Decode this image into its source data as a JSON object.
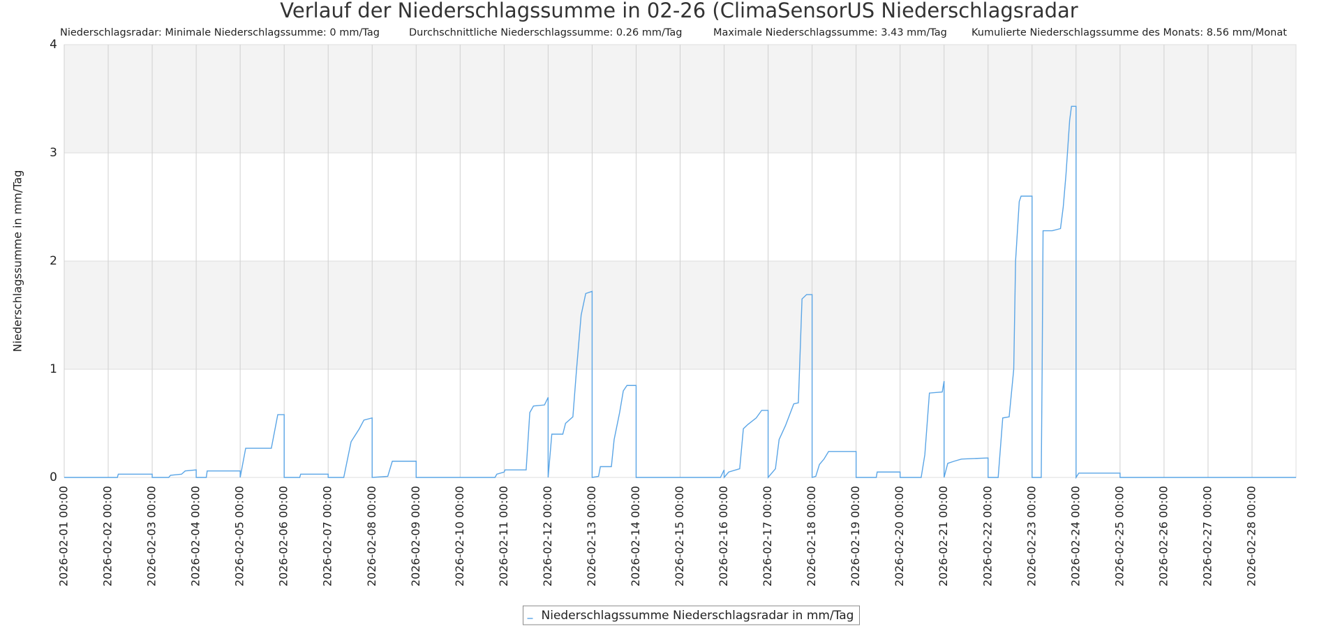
{
  "chart_data": {
    "type": "line",
    "title": "Verlauf der Niederschlagssumme in 02-26 (ClimaSensorUS Niederschlagsradar",
    "subtitles": [
      "Niederschlagsradar: Minimale Niederschlagssumme: 0 mm/Tag",
      "Durchschnittliche Niederschlagssumme: 0.26 mm/Tag",
      "Maximale Niederschlagssumme: 3.43 mm/Tag",
      "Kumulierte Niederschlagssumme des Monats: 8.56 mm/Monat"
    ],
    "y_label": "Niederschlagssumme in mm/Tag",
    "x": [
      "2026-02-01 00:00",
      "2026-02-02 05:00",
      "2026-02-02 05:30",
      "2026-02-03 00:00",
      "2026-02-03 00:00",
      "2026-02-03 09:00",
      "2026-02-03 10:00",
      "2026-02-03 16:00",
      "2026-02-03 18:00",
      "2026-02-04 00:00",
      "2026-02-04 00:00",
      "2026-02-04 05:30",
      "2026-02-04 06:00",
      "2026-02-05 00:00",
      "2026-02-05 00:00",
      "2026-02-05 03:00",
      "2026-02-05 17:00",
      "2026-02-05 20:30",
      "2026-02-06 00:00",
      "2026-02-06 00:00",
      "2026-02-06 08:30",
      "2026-02-06 09:00",
      "2026-02-07 00:00",
      "2026-02-07 00:00",
      "2026-02-07 08:30",
      "2026-02-07 12:30",
      "2026-02-07 17:00",
      "2026-02-07 19:30",
      "2026-02-08 00:00",
      "2026-02-08 00:00",
      "2026-02-08 08:30",
      "2026-02-08 11:00",
      "2026-02-09 00:00",
      "2026-02-09 00:00",
      "2026-02-10 19:00",
      "2026-02-10 20:00",
      "2026-02-11 00:00",
      "2026-02-11 00:30",
      "2026-02-11 12:00",
      "2026-02-11 14:00",
      "2026-02-11 16:00",
      "2026-02-11 22:00",
      "2026-02-12 00:00",
      "2026-02-12 00:00",
      "2026-02-12 02:00",
      "2026-02-12 08:00",
      "2026-02-12 09:30",
      "2026-02-12 13:30",
      "2026-02-12 15:30",
      "2026-02-12 18:00",
      "2026-02-12 20:30",
      "2026-02-13 00:00",
      "2026-02-13 00:00",
      "2026-02-13 03:30",
      "2026-02-13 04:30",
      "2026-02-13 10:30",
      "2026-02-13 12:00",
      "2026-02-13 15:00",
      "2026-02-13 17:00",
      "2026-02-13 19:00",
      "2026-02-14 00:00",
      "2026-02-14 00:00",
      "2026-02-15 22:00",
      "2026-02-16 00:00",
      "2026-02-16 00:00",
      "2026-02-16 02:30",
      "2026-02-16 08:30",
      "2026-02-16 10:30",
      "2026-02-16 13:00",
      "2026-02-16 17:30",
      "2026-02-16 20:30",
      "2026-02-17 00:00",
      "2026-02-17 00:00",
      "2026-02-17 04:00",
      "2026-02-17 06:00",
      "2026-02-17 09:30",
      "2026-02-17 14:00",
      "2026-02-17 16:30",
      "2026-02-17 18:30",
      "2026-02-17 21:00",
      "2026-02-18 00:00",
      "2026-02-18 00:00",
      "2026-02-18 02:00",
      "2026-02-18 04:00",
      "2026-02-18 06:30",
      "2026-02-18 09:00",
      "2026-02-19 00:00",
      "2026-02-19 00:00",
      "2026-02-19 11:00",
      "2026-02-19 11:30",
      "2026-02-20 00:00",
      "2026-02-20 00:00",
      "2026-02-20 11:30",
      "2026-02-20 13:30",
      "2026-02-20 16:00",
      "2026-02-20 23:00",
      "2026-02-21 00:00",
      "2026-02-21 00:00",
      "2026-02-21 02:00",
      "2026-02-21 05:30",
      "2026-02-21 09:30",
      "2026-02-22 00:00",
      "2026-02-22 00:00",
      "2026-02-22 05:30",
      "2026-02-22 08:00",
      "2026-02-22 11:30",
      "2026-02-22 14:00",
      "2026-02-22 15:00",
      "2026-02-22 17:00",
      "2026-02-22 18:00",
      "2026-02-23 00:00",
      "2026-02-23 00:00",
      "2026-02-23 05:00",
      "2026-02-23 05:30",
      "2026-02-23 06:00",
      "2026-02-23 11:00",
      "2026-02-23 15:30",
      "2026-02-23 17:00",
      "2026-02-23 18:30",
      "2026-02-23 20:30",
      "2026-02-23 21:30",
      "2026-02-24 00:00",
      "2026-02-24 00:00",
      "2026-02-24 01:30",
      "2026-02-25 00:00",
      "2026-02-25 00:00",
      "2026-03-01 00:00"
    ],
    "series": [
      {
        "name": "Niederschlagssumme Niederschlagsradar in mm/Tag",
        "color": "#5aa5e6",
        "values": [
          0,
          0,
          0.03,
          0.03,
          0,
          0,
          0.02,
          0.03,
          0.06,
          0.07,
          0,
          0,
          0.06,
          0.06,
          0,
          0.27,
          0.27,
          0.58,
          0.58,
          0,
          0,
          0.03,
          0.03,
          0,
          0,
          0.33,
          0.45,
          0.53,
          0.55,
          0,
          0.01,
          0.15,
          0.15,
          0,
          0,
          0.03,
          0.05,
          0.07,
          0.07,
          0.6,
          0.66,
          0.67,
          0.74,
          0,
          0.4,
          0.4,
          0.5,
          0.56,
          1.0,
          1.5,
          1.7,
          1.72,
          0,
          0.01,
          0.1,
          0.1,
          0.35,
          0.6,
          0.8,
          0.85,
          0.85,
          0,
          0,
          0.07,
          0,
          0.05,
          0.08,
          0.45,
          0.49,
          0.55,
          0.62,
          0.62,
          0,
          0.08,
          0.35,
          0.48,
          0.68,
          0.69,
          1.65,
          1.69,
          1.69,
          0,
          0.01,
          0.12,
          0.17,
          0.24,
          0.24,
          0,
          0,
          0.05,
          0.05,
          0,
          0,
          0.21,
          0.78,
          0.79,
          0.89,
          0,
          0.13,
          0.15,
          0.17,
          0.18,
          0,
          0,
          0.55,
          0.56,
          1.0,
          2.0,
          2.55,
          2.6,
          2.6,
          0,
          0,
          1.0,
          2.28,
          2.28,
          2.3,
          2.5,
          2.8,
          3.3,
          3.43,
          3.43,
          0,
          0.04,
          0.04,
          0,
          0
        ]
      }
    ],
    "xlim": [
      "2026-02-01 00:00",
      "2026-03-01 00:00"
    ],
    "xticks": [
      "2026-02-01 00:00",
      "2026-02-02 00:00",
      "2026-02-03 00:00",
      "2026-02-04 00:00",
      "2026-02-05 00:00",
      "2026-02-06 00:00",
      "2026-02-07 00:00",
      "2026-02-08 00:00",
      "2026-02-09 00:00",
      "2026-02-10 00:00",
      "2026-02-11 00:00",
      "2026-02-12 00:00",
      "2026-02-13 00:00",
      "2026-02-14 00:00",
      "2026-02-15 00:00",
      "2026-02-16 00:00",
      "2026-02-17 00:00",
      "2026-02-18 00:00",
      "2026-02-19 00:00",
      "2026-02-20 00:00",
      "2026-02-21 00:00",
      "2026-02-22 00:00",
      "2026-02-23 00:00",
      "2026-02-24 00:00",
      "2026-02-25 00:00",
      "2026-02-26 00:00",
      "2026-02-27 00:00",
      "2026-02-28 00:00"
    ],
    "ylim": [
      0,
      4
    ],
    "yticks": [
      0,
      1,
      2,
      3,
      4
    ],
    "grid": true,
    "band_grid": true,
    "legend": "bottom"
  }
}
